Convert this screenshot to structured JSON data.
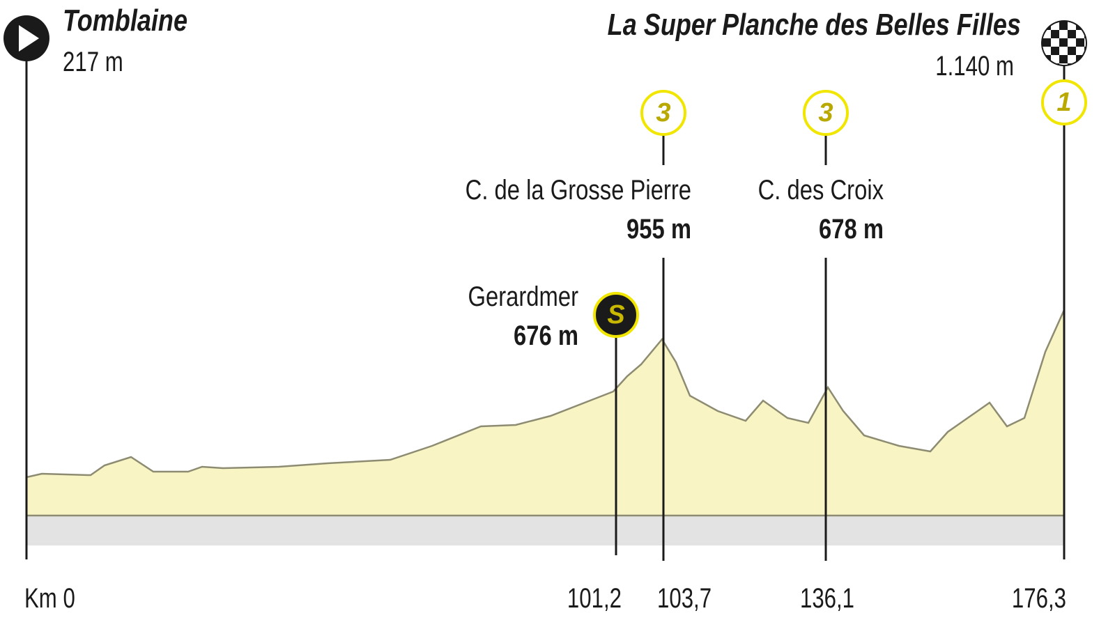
{
  "start": {
    "name": "Tomblaine",
    "elevation": "217 m",
    "km": "Km 0"
  },
  "sprint": {
    "symbol": "S",
    "name": "Gerardmer",
    "elevation": "676 m",
    "km": "101,2"
  },
  "climbs": [
    {
      "category": "3",
      "name": "C. de la Grosse Pierre",
      "elevation": "955 m",
      "km": "103,7"
    },
    {
      "category": "3",
      "name": "C. des Croix",
      "elevation": "678 m",
      "km": "136,1"
    }
  ],
  "finish": {
    "category": "1",
    "name": "La Super Planche des Belles Filles",
    "elevation": "1.140 m",
    "km": "176,3"
  }
}
